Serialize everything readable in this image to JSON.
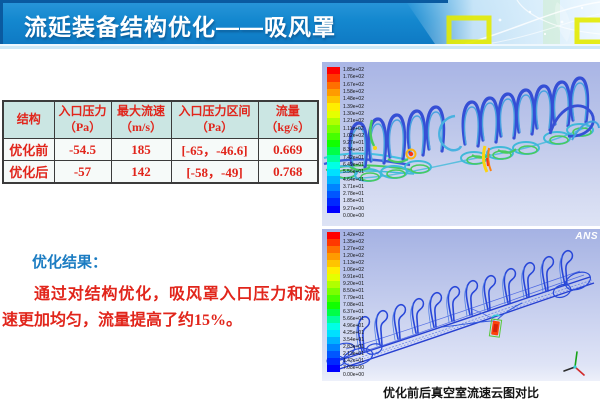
{
  "slide": {
    "title": "流延装备结构优化——吸风罩"
  },
  "table": {
    "headers": [
      "结构",
      "入口压力\n（Pa）",
      "最大流速\n（m/s）",
      "入口压力区间\n（Pa）",
      "流量\n（kg/s）"
    ],
    "rows": [
      [
        "优化前",
        "-54.5",
        "185",
        "[-65，-46.6]",
        "0.669"
      ],
      [
        "优化后",
        "-57",
        "142",
        "[-58，-49]",
        "0.768"
      ]
    ]
  },
  "results": {
    "heading": "优化结果：",
    "body": "通过对结构优化，吸风罩入口压力和流速更加均匀，流量提高了约15%。"
  },
  "figures": {
    "caption": "优化前后真空室流速云图对比",
    "watermark": "ANS",
    "before": {
      "legend_labels": [
        "1.85e+02",
        "1.76e+02",
        "1.67e+02",
        "1.58e+02",
        "1.48e+02",
        "1.39e+02",
        "1.30e+02",
        "1.21e+02",
        "1.11e+02",
        "1.02e+02",
        "9.27e+01",
        "8.34e+01",
        "7.42e+01",
        "6.49e+01",
        "5.56e+01",
        "4.64e+01",
        "3.71e+01",
        "2.78e+01",
        "1.85e+01",
        "9.27e+00",
        "0.00e+00"
      ]
    },
    "after": {
      "legend_labels": [
        "1.42e+02",
        "1.35e+02",
        "1.27e+02",
        "1.20e+02",
        "1.13e+02",
        "1.06e+02",
        "9.91e+01",
        "9.20e+01",
        "8.50e+01",
        "7.79e+01",
        "7.08e+01",
        "6.37e+01",
        "5.66e+01",
        "4.96e+01",
        "4.25e+01",
        "3.54e+01",
        "2.83e+01",
        "2.13e+01",
        "1.42e+01",
        "7.08e+00",
        "0.00e+00"
      ]
    }
  },
  "colors": {
    "banner_blue": "#1488cf",
    "accent_red": "#e1251b",
    "heading_blue": "#1b7cc2",
    "table_header_bg": "#cbe6e3",
    "rainbow": [
      "#ff0000",
      "#ff3800",
      "#ff6f00",
      "#ff9b00",
      "#ffc400",
      "#ffee00",
      "#e5ff00",
      "#b0ff00",
      "#7bff00",
      "#46ff00",
      "#11ff00",
      "#00ff48",
      "#00ff9d",
      "#00ffe5",
      "#00e0ff",
      "#00b2ff",
      "#0084ff",
      "#0056ff",
      "#0028ff",
      "#0000ff"
    ]
  }
}
